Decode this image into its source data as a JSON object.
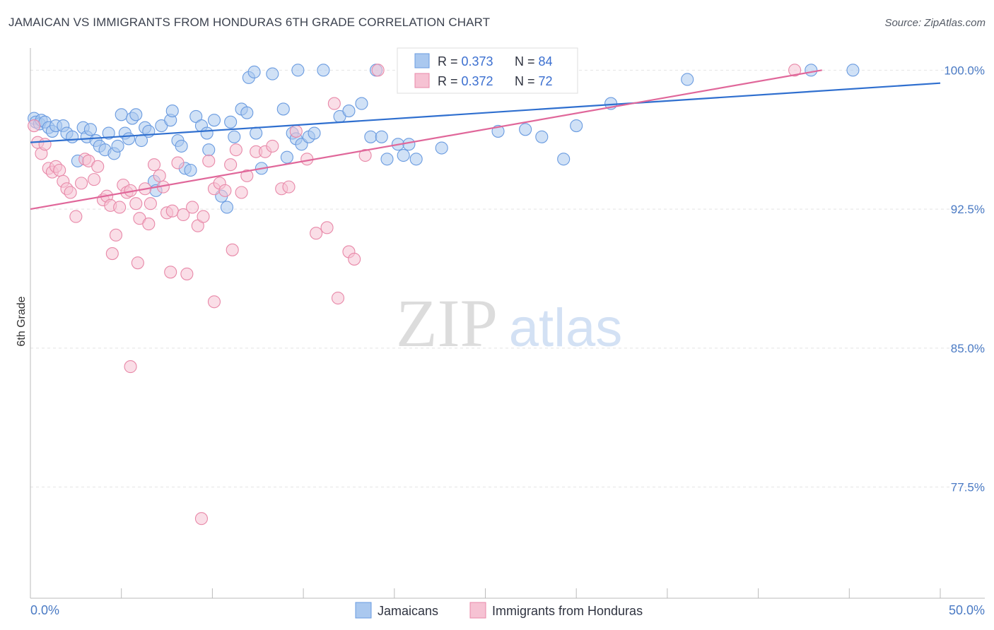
{
  "title": "JAMAICAN VS IMMIGRANTS FROM HONDURAS 6TH GRADE CORRELATION CHART",
  "source": "Source: ZipAtlas.com",
  "watermark": {
    "zip": "ZIP",
    "atlas": "atlas"
  },
  "chart_data": {
    "type": "scatter",
    "ylabel": "6th Grade",
    "xlim": [
      0,
      50
    ],
    "ylim": [
      71.5,
      101.5
    ],
    "x_tick_labels": {
      "min": "0.0%",
      "max": "50.0%"
    },
    "y_ticks": [
      {
        "value": 100.0,
        "label": "100.0%"
      },
      {
        "value": 92.5,
        "label": "92.5%"
      },
      {
        "value": 85.0,
        "label": "85.0%"
      },
      {
        "value": 77.5,
        "label": "77.5%"
      }
    ],
    "grid": true,
    "legend_position": "bottom",
    "stats": [
      {
        "r_label": "R = ",
        "r": "0.373",
        "n_label": "N = ",
        "n": "84"
      },
      {
        "r_label": "R = ",
        "r": "0.372",
        "n_label": "N = ",
        "n": "72"
      }
    ],
    "series": [
      {
        "name": "Jamaicans",
        "color": "#6a9be0",
        "fill": "#aac8ef",
        "trend": {
          "x0": 0,
          "y0": 96.1,
          "x1": 50,
          "y1": 99.3
        },
        "points": [
          [
            0.2,
            97.4
          ],
          [
            0.3,
            97.2
          ],
          [
            0.5,
            97.1
          ],
          [
            0.6,
            97.3
          ],
          [
            0.8,
            97.2
          ],
          [
            1.0,
            96.9
          ],
          [
            1.2,
            96.7
          ],
          [
            1.4,
            97.0
          ],
          [
            1.8,
            97.0
          ],
          [
            2.0,
            96.6
          ],
          [
            2.3,
            96.4
          ],
          [
            2.6,
            95.1
          ],
          [
            2.9,
            96.9
          ],
          [
            3.1,
            96.4
          ],
          [
            3.3,
            96.8
          ],
          [
            3.6,
            96.2
          ],
          [
            3.8,
            95.9
          ],
          [
            4.1,
            95.7
          ],
          [
            4.3,
            96.6
          ],
          [
            4.6,
            95.5
          ],
          [
            4.8,
            95.9
          ],
          [
            5.0,
            97.6
          ],
          [
            5.2,
            96.6
          ],
          [
            5.4,
            96.3
          ],
          [
            5.6,
            97.4
          ],
          [
            5.8,
            97.6
          ],
          [
            6.1,
            96.2
          ],
          [
            6.3,
            96.9
          ],
          [
            6.5,
            96.7
          ],
          [
            6.8,
            94.0
          ],
          [
            6.9,
            93.5
          ],
          [
            7.2,
            97.0
          ],
          [
            7.7,
            97.3
          ],
          [
            7.8,
            97.8
          ],
          [
            8.1,
            96.2
          ],
          [
            8.3,
            95.9
          ],
          [
            8.5,
            94.7
          ],
          [
            8.8,
            94.6
          ],
          [
            9.1,
            97.5
          ],
          [
            9.4,
            97.0
          ],
          [
            9.7,
            96.6
          ],
          [
            9.8,
            95.7
          ],
          [
            10.1,
            97.3
          ],
          [
            10.5,
            93.2
          ],
          [
            10.8,
            92.6
          ],
          [
            11.0,
            97.2
          ],
          [
            11.2,
            96.4
          ],
          [
            11.6,
            97.9
          ],
          [
            11.9,
            97.7
          ],
          [
            12.4,
            96.6
          ],
          [
            12.7,
            94.7
          ],
          [
            13.3,
            99.8
          ],
          [
            13.9,
            97.9
          ],
          [
            14.1,
            95.3
          ],
          [
            14.4,
            96.6
          ],
          [
            14.6,
            96.3
          ],
          [
            14.9,
            96.0
          ],
          [
            15.3,
            96.4
          ],
          [
            15.6,
            96.6
          ],
          [
            17.0,
            97.5
          ],
          [
            17.5,
            97.8
          ],
          [
            18.2,
            98.2
          ],
          [
            18.7,
            96.4
          ],
          [
            19.3,
            96.4
          ],
          [
            19.6,
            95.2
          ],
          [
            20.2,
            96.0
          ],
          [
            20.5,
            95.4
          ],
          [
            20.8,
            96.0
          ],
          [
            21.2,
            95.2
          ],
          [
            22.6,
            95.8
          ],
          [
            25.7,
            96.7
          ],
          [
            27.2,
            96.8
          ],
          [
            28.1,
            96.4
          ],
          [
            29.3,
            95.2
          ],
          [
            30.0,
            97.0
          ],
          [
            31.9,
            98.2
          ],
          [
            36.1,
            99.5
          ],
          [
            12.0,
            99.6
          ],
          [
            12.3,
            99.9
          ],
          [
            14.7,
            100.0
          ],
          [
            16.1,
            100.0
          ],
          [
            19.0,
            100.0
          ],
          [
            42.9,
            100.0
          ],
          [
            45.2,
            100.0
          ]
        ]
      },
      {
        "name": "Immigrants from Honduras",
        "color": "#e888a8",
        "fill": "#f6c2d3",
        "trend": {
          "x0": 0,
          "y0": 92.5,
          "x1": 43.5,
          "y1": 100.0
        },
        "points": [
          [
            0.2,
            97.0
          ],
          [
            0.4,
            96.1
          ],
          [
            0.6,
            95.5
          ],
          [
            0.8,
            96.0
          ],
          [
            1.0,
            94.7
          ],
          [
            1.2,
            94.5
          ],
          [
            1.4,
            94.8
          ],
          [
            1.6,
            94.6
          ],
          [
            1.8,
            94.0
          ],
          [
            2.0,
            93.6
          ],
          [
            2.2,
            93.4
          ],
          [
            2.5,
            92.1
          ],
          [
            2.8,
            93.9
          ],
          [
            3.0,
            95.2
          ],
          [
            3.2,
            95.1
          ],
          [
            3.5,
            94.1
          ],
          [
            3.7,
            94.8
          ],
          [
            4.0,
            93.0
          ],
          [
            4.2,
            93.2
          ],
          [
            4.4,
            92.7
          ],
          [
            4.7,
            91.1
          ],
          [
            4.9,
            92.6
          ],
          [
            5.1,
            93.8
          ],
          [
            5.3,
            93.4
          ],
          [
            5.5,
            93.5
          ],
          [
            5.8,
            92.8
          ],
          [
            6.0,
            92.0
          ],
          [
            6.3,
            93.6
          ],
          [
            6.5,
            91.7
          ],
          [
            6.6,
            92.8
          ],
          [
            6.8,
            94.9
          ],
          [
            7.1,
            94.3
          ],
          [
            7.3,
            93.7
          ],
          [
            7.5,
            92.3
          ],
          [
            7.8,
            92.4
          ],
          [
            8.1,
            95.0
          ],
          [
            8.4,
            92.2
          ],
          [
            8.6,
            89.0
          ],
          [
            8.9,
            92.6
          ],
          [
            9.2,
            91.6
          ],
          [
            9.5,
            92.1
          ],
          [
            9.8,
            95.1
          ],
          [
            10.1,
            93.6
          ],
          [
            10.4,
            93.9
          ],
          [
            10.7,
            93.5
          ],
          [
            11.0,
            94.9
          ],
          [
            11.3,
            95.7
          ],
          [
            11.6,
            93.4
          ],
          [
            11.9,
            94.3
          ],
          [
            12.4,
            95.6
          ],
          [
            12.9,
            95.6
          ],
          [
            13.3,
            95.9
          ],
          [
            13.8,
            93.6
          ],
          [
            14.2,
            93.7
          ],
          [
            14.6,
            96.7
          ],
          [
            15.2,
            95.2
          ],
          [
            15.7,
            91.2
          ],
          [
            16.3,
            91.5
          ],
          [
            16.9,
            87.7
          ],
          [
            17.5,
            90.2
          ],
          [
            17.8,
            89.8
          ],
          [
            18.4,
            95.4
          ],
          [
            4.5,
            90.1
          ],
          [
            5.9,
            89.6
          ],
          [
            7.7,
            89.1
          ],
          [
            10.1,
            87.5
          ],
          [
            11.1,
            90.3
          ],
          [
            5.5,
            84.0
          ],
          [
            9.4,
            75.8
          ],
          [
            16.7,
            98.2
          ],
          [
            19.1,
            100.0
          ],
          [
            42.0,
            100.0
          ]
        ]
      }
    ]
  }
}
